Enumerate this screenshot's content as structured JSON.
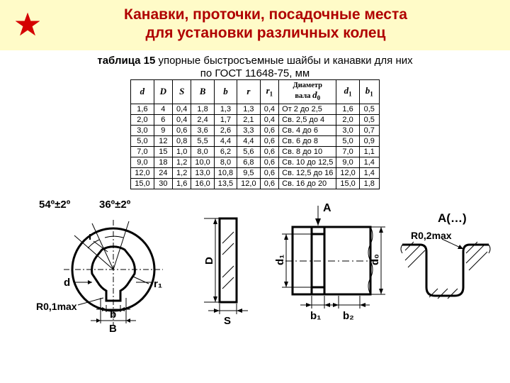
{
  "header": {
    "title_line1": "Канавки, проточки, посадочные места",
    "title_line2": "для установки различных колец",
    "subtitle_bold": "таблица 15",
    "subtitle_rest": " упорные быстросъемные шайбы и канавки для них",
    "subtitle_line2": "по ГОСТ 11648-75, мм"
  },
  "table": {
    "columns": [
      "d",
      "D",
      "S",
      "B",
      "b",
      "r",
      "r₁",
      "Диаметр вала d₀",
      "d₁",
      "b₁"
    ],
    "rows": [
      [
        "1,6",
        "4",
        "0,4",
        "1,8",
        "1,3",
        "1,3",
        "0,4",
        "От 2 до 2,5",
        "1,6",
        "0,5"
      ],
      [
        "2,0",
        "6",
        "0,4",
        "2,4",
        "1,7",
        "2,1",
        "0,4",
        "Св. 2,5 до 4",
        "2,0",
        "0,5"
      ],
      [
        "3,0",
        "9",
        "0,6",
        "3,6",
        "2,6",
        "3,3",
        "0,6",
        "Св. 4 до 6",
        "3,0",
        "0,7"
      ],
      [
        "5,0",
        "12",
        "0,8",
        "5,5",
        "4,4",
        "4,4",
        "0,6",
        "Св. 6 до 8",
        "5,0",
        "0,9"
      ],
      [
        "7,0",
        "15",
        "1,0",
        "8,0",
        "6,2",
        "5,6",
        "0,6",
        "Св. 8 до 10",
        "7,0",
        "1,1"
      ],
      [
        "9,0",
        "18",
        "1,2",
        "10,0",
        "8,0",
        "6,8",
        "0,6",
        "Св. 10 до 12,5",
        "9,0",
        "1,4"
      ],
      [
        "12,0",
        "24",
        "1,2",
        "13,0",
        "10,8",
        "9,5",
        "0,6",
        "Св. 12,5 до 16",
        "12,0",
        "1,4"
      ],
      [
        "15,0",
        "30",
        "1,6",
        "16,0",
        "13,5",
        "12,0",
        "0,6",
        "Св. 16 до 20",
        "15,0",
        "1,8"
      ]
    ]
  },
  "diagram": {
    "labels": {
      "ang54": "54º±2º",
      "ang36": "36º±2º",
      "r": "r",
      "r1": "r₁",
      "d": "d",
      "R01": "R0,1max",
      "b": "b",
      "B": "B",
      "D": "D",
      "S": "S",
      "A": "A",
      "d1_": "d₁",
      "d0": "d₀",
      "b1": "b₁",
      "b2": "b₂",
      "Adots": "A(…)",
      "R02": "R0,2max"
    }
  }
}
